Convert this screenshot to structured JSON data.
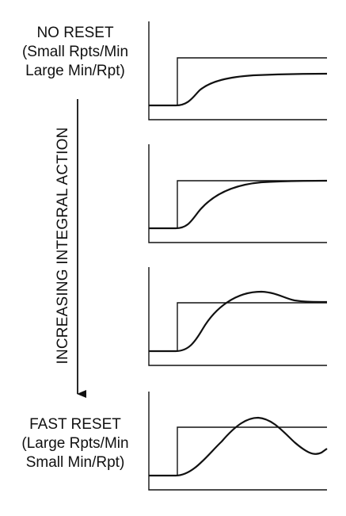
{
  "top_label": {
    "line1": "NO RESET",
    "line2": "(Small Rpts/Min",
    "line3": "Large Min/Rpt)"
  },
  "axis_label": "INCREASING INTEGRAL ACTION",
  "bottom_label": {
    "line1": "FAST RESET",
    "line2": "(Large Rpts/Min",
    "line3": "Small Min/Rpt)"
  },
  "panels": [
    {
      "name": "no-reset-response",
      "response": "slow-first-order"
    },
    {
      "name": "moderate-reset-response",
      "response": "faster-first-order"
    },
    {
      "name": "increased-reset-response",
      "response": "slight-overshoot"
    },
    {
      "name": "fast-reset-response",
      "response": "oscillatory-overshoot"
    }
  ],
  "colors": {
    "line": "#111111",
    "background": "#ffffff"
  }
}
